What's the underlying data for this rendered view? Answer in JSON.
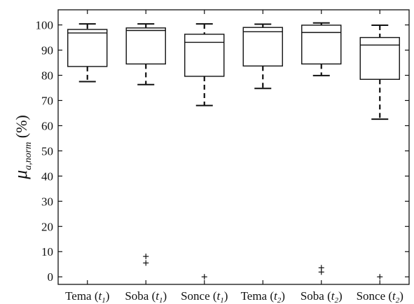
{
  "chart_data": {
    "type": "box",
    "title": "",
    "ylabel": {
      "symbol": "μ",
      "subscript": "a,norm",
      "unit": "(%)"
    },
    "xlabel": "",
    "ylim": [
      -3,
      106
    ],
    "yticks": [
      0,
      10,
      20,
      30,
      40,
      50,
      60,
      70,
      80,
      90,
      100
    ],
    "grid": false,
    "categories": [
      {
        "name": "Tema",
        "sub": "1"
      },
      {
        "name": "Soba",
        "sub": "1"
      },
      {
        "name": "Sonce",
        "sub": "1"
      },
      {
        "name": "Tema",
        "sub": "2"
      },
      {
        "name": "Soba",
        "sub": "2"
      },
      {
        "name": "Sonce",
        "sub": "2"
      }
    ],
    "boxes": [
      {
        "whisker_low": 77.5,
        "q1": 83.5,
        "median": 96.8,
        "q3": 98.2,
        "whisker_high": 100.4,
        "outliers": []
      },
      {
        "whisker_low": 76.3,
        "q1": 84.5,
        "median": 97.8,
        "q3": 98.8,
        "whisker_high": 100.4,
        "outliers": [
          5.5,
          8.1
        ]
      },
      {
        "whisker_low": 68.0,
        "q1": 79.6,
        "median": 93.1,
        "q3": 96.3,
        "whisker_high": 100.4,
        "outliers": [
          0
        ]
      },
      {
        "whisker_low": 74.8,
        "q1": 83.7,
        "median": 97.3,
        "q3": 99.0,
        "whisker_high": 100.3,
        "outliers": []
      },
      {
        "whisker_low": 79.9,
        "q1": 84.5,
        "median": 97.0,
        "q3": 99.9,
        "whisker_high": 100.8,
        "outliers": [
          1.9,
          3.6
        ]
      },
      {
        "whisker_low": 62.6,
        "q1": 78.4,
        "median": 92.0,
        "q3": 95.0,
        "whisker_high": 99.9,
        "outliers": [
          0
        ]
      }
    ]
  }
}
